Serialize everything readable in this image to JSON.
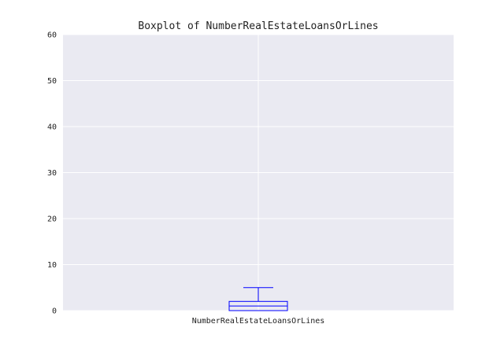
{
  "chart_data": {
    "type": "boxplot",
    "title": "Boxplot of NumberRealEstateLoansOrLines",
    "xlabel": "",
    "ylabel": "",
    "categories": [
      "NumberRealEstateLoansOrLines"
    ],
    "ylim": [
      0,
      60
    ],
    "yticks": [
      0,
      10,
      20,
      30,
      40,
      50,
      60
    ],
    "grid": true,
    "boxes": [
      {
        "min": 0,
        "q1": 0,
        "median": 1,
        "q3": 2,
        "whisker_high": 5
      }
    ],
    "colors": {
      "plot_background": "#eaeaf2",
      "grid": "#ffffff",
      "box": "#0000ff"
    }
  }
}
